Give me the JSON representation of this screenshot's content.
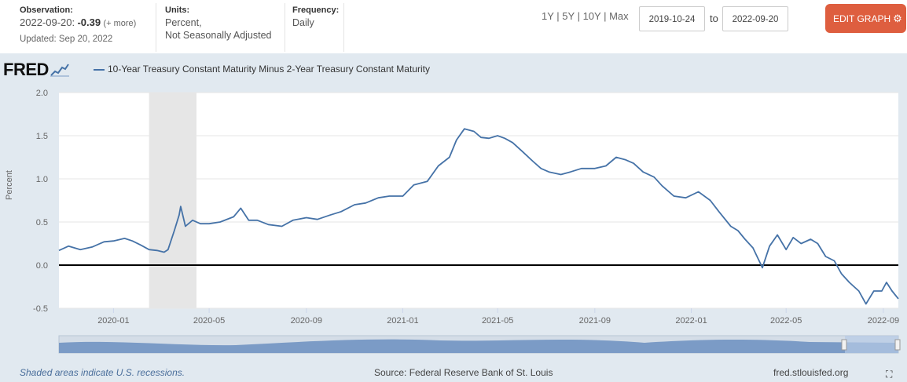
{
  "header": {
    "observation_label": "Observation:",
    "observation_date": "2022-09-20:",
    "observation_value": "-0.39",
    "observation_more": "(+ more)",
    "updated": "Updated: Sep 20, 2022",
    "units_label": "Units:",
    "units_line1": "Percent,",
    "units_line2": "Not Seasonally Adjusted",
    "frequency_label": "Frequency:",
    "frequency_value": "Daily",
    "ranges": [
      "1Y",
      "5Y",
      "10Y",
      "Max"
    ],
    "date_from": "2019-10-24",
    "date_to": "2022-09-20",
    "to_label": "to",
    "edit_button": "EDIT GRAPH"
  },
  "logo_text": "FRED",
  "footer": {
    "recession_note": "Shaded areas indicate U.S. recessions.",
    "source": "Source: Federal Reserve Bank of St. Louis",
    "site": "fred.stlouisfed.org"
  },
  "colors": {
    "series": "#4572a7",
    "accent": "#de5e3f",
    "background": "#e1e9f0",
    "recession": "#e6e6e6"
  },
  "chart_data": {
    "type": "line",
    "title": "10-Year Treasury Constant Maturity Minus 2-Year Treasury Constant Maturity",
    "ylabel": "Percent",
    "xlabel": "",
    "ylim": [
      -0.5,
      2.0
    ],
    "yticks": [
      "2.0",
      "1.5",
      "1.0",
      "0.5",
      "0.0",
      "-0.5"
    ],
    "yticks_values": [
      2.0,
      1.5,
      1.0,
      0.5,
      0.0,
      -0.5
    ],
    "xlim": [
      "2019-10-24",
      "2022-09-20"
    ],
    "xticks": [
      "2020-01",
      "2020-05",
      "2020-09",
      "2021-01",
      "2021-05",
      "2021-09",
      "2022-01",
      "2022-05",
      "2022-09"
    ],
    "xticks_dates": [
      "2020-01-01",
      "2020-05-01",
      "2020-09-01",
      "2021-01-01",
      "2021-05-01",
      "2021-09-01",
      "2022-01-01",
      "2022-05-01",
      "2022-09-01"
    ],
    "zero_line": 0.0,
    "recession": {
      "start": "2020-02-15",
      "end": "2020-04-15"
    },
    "series": [
      {
        "name": "10-Year Treasury Constant Maturity Minus 2-Year Treasury Constant Maturity",
        "points": [
          [
            "2019-10-24",
            0.17
          ],
          [
            "2019-11-05",
            0.22
          ],
          [
            "2019-11-20",
            0.18
          ],
          [
            "2019-12-05",
            0.21
          ],
          [
            "2019-12-20",
            0.27
          ],
          [
            "2020-01-01",
            0.28
          ],
          [
            "2020-01-15",
            0.31
          ],
          [
            "2020-01-25",
            0.28
          ],
          [
            "2020-02-05",
            0.23
          ],
          [
            "2020-02-15",
            0.18
          ],
          [
            "2020-02-25",
            0.17
          ],
          [
            "2020-03-05",
            0.15
          ],
          [
            "2020-03-10",
            0.18
          ],
          [
            "2020-03-18",
            0.4
          ],
          [
            "2020-03-24",
            0.58
          ],
          [
            "2020-03-26",
            0.68
          ],
          [
            "2020-04-01",
            0.45
          ],
          [
            "2020-04-10",
            0.52
          ],
          [
            "2020-04-20",
            0.48
          ],
          [
            "2020-05-01",
            0.48
          ],
          [
            "2020-05-15",
            0.5
          ],
          [
            "2020-06-01",
            0.56
          ],
          [
            "2020-06-10",
            0.66
          ],
          [
            "2020-06-20",
            0.52
          ],
          [
            "2020-07-01",
            0.52
          ],
          [
            "2020-07-15",
            0.47
          ],
          [
            "2020-08-01",
            0.45
          ],
          [
            "2020-08-15",
            0.52
          ],
          [
            "2020-09-01",
            0.55
          ],
          [
            "2020-09-15",
            0.53
          ],
          [
            "2020-10-01",
            0.58
          ],
          [
            "2020-10-15",
            0.62
          ],
          [
            "2020-11-01",
            0.7
          ],
          [
            "2020-11-15",
            0.72
          ],
          [
            "2020-12-01",
            0.78
          ],
          [
            "2020-12-15",
            0.8
          ],
          [
            "2021-01-01",
            0.8
          ],
          [
            "2021-01-15",
            0.93
          ],
          [
            "2021-02-01",
            0.97
          ],
          [
            "2021-02-15",
            1.15
          ],
          [
            "2021-03-01",
            1.25
          ],
          [
            "2021-03-10",
            1.45
          ],
          [
            "2021-03-20",
            1.58
          ],
          [
            "2021-04-01",
            1.55
          ],
          [
            "2021-04-10",
            1.48
          ],
          [
            "2021-04-20",
            1.47
          ],
          [
            "2021-05-01",
            1.5
          ],
          [
            "2021-05-10",
            1.47
          ],
          [
            "2021-05-20",
            1.42
          ],
          [
            "2021-06-01",
            1.32
          ],
          [
            "2021-06-15",
            1.2
          ],
          [
            "2021-06-25",
            1.12
          ],
          [
            "2021-07-05",
            1.08
          ],
          [
            "2021-07-20",
            1.05
          ],
          [
            "2021-08-01",
            1.08
          ],
          [
            "2021-08-15",
            1.12
          ],
          [
            "2021-09-01",
            1.12
          ],
          [
            "2021-09-15",
            1.15
          ],
          [
            "2021-09-28",
            1.25
          ],
          [
            "2021-10-10",
            1.22
          ],
          [
            "2021-10-20",
            1.18
          ],
          [
            "2021-11-01",
            1.08
          ],
          [
            "2021-11-15",
            1.02
          ],
          [
            "2021-11-25",
            0.92
          ],
          [
            "2021-12-10",
            0.8
          ],
          [
            "2021-12-25",
            0.78
          ],
          [
            "2022-01-10",
            0.85
          ],
          [
            "2022-01-25",
            0.75
          ],
          [
            "2022-02-05",
            0.62
          ],
          [
            "2022-02-20",
            0.45
          ],
          [
            "2022-03-01",
            0.4
          ],
          [
            "2022-03-10",
            0.3
          ],
          [
            "2022-03-20",
            0.2
          ],
          [
            "2022-04-01",
            -0.03
          ],
          [
            "2022-04-10",
            0.22
          ],
          [
            "2022-04-20",
            0.35
          ],
          [
            "2022-05-01",
            0.18
          ],
          [
            "2022-05-10",
            0.32
          ],
          [
            "2022-05-20",
            0.25
          ],
          [
            "2022-06-01",
            0.3
          ],
          [
            "2022-06-10",
            0.25
          ],
          [
            "2022-06-20",
            0.1
          ],
          [
            "2022-07-01",
            0.05
          ],
          [
            "2022-07-10",
            -0.1
          ],
          [
            "2022-07-20",
            -0.2
          ],
          [
            "2022-08-01",
            -0.3
          ],
          [
            "2022-08-10",
            -0.45
          ],
          [
            "2022-08-20",
            -0.3
          ],
          [
            "2022-08-30",
            -0.3
          ],
          [
            "2022-09-05",
            -0.2
          ],
          [
            "2022-09-12",
            -0.3
          ],
          [
            "2022-09-20",
            -0.39
          ]
        ]
      }
    ]
  }
}
